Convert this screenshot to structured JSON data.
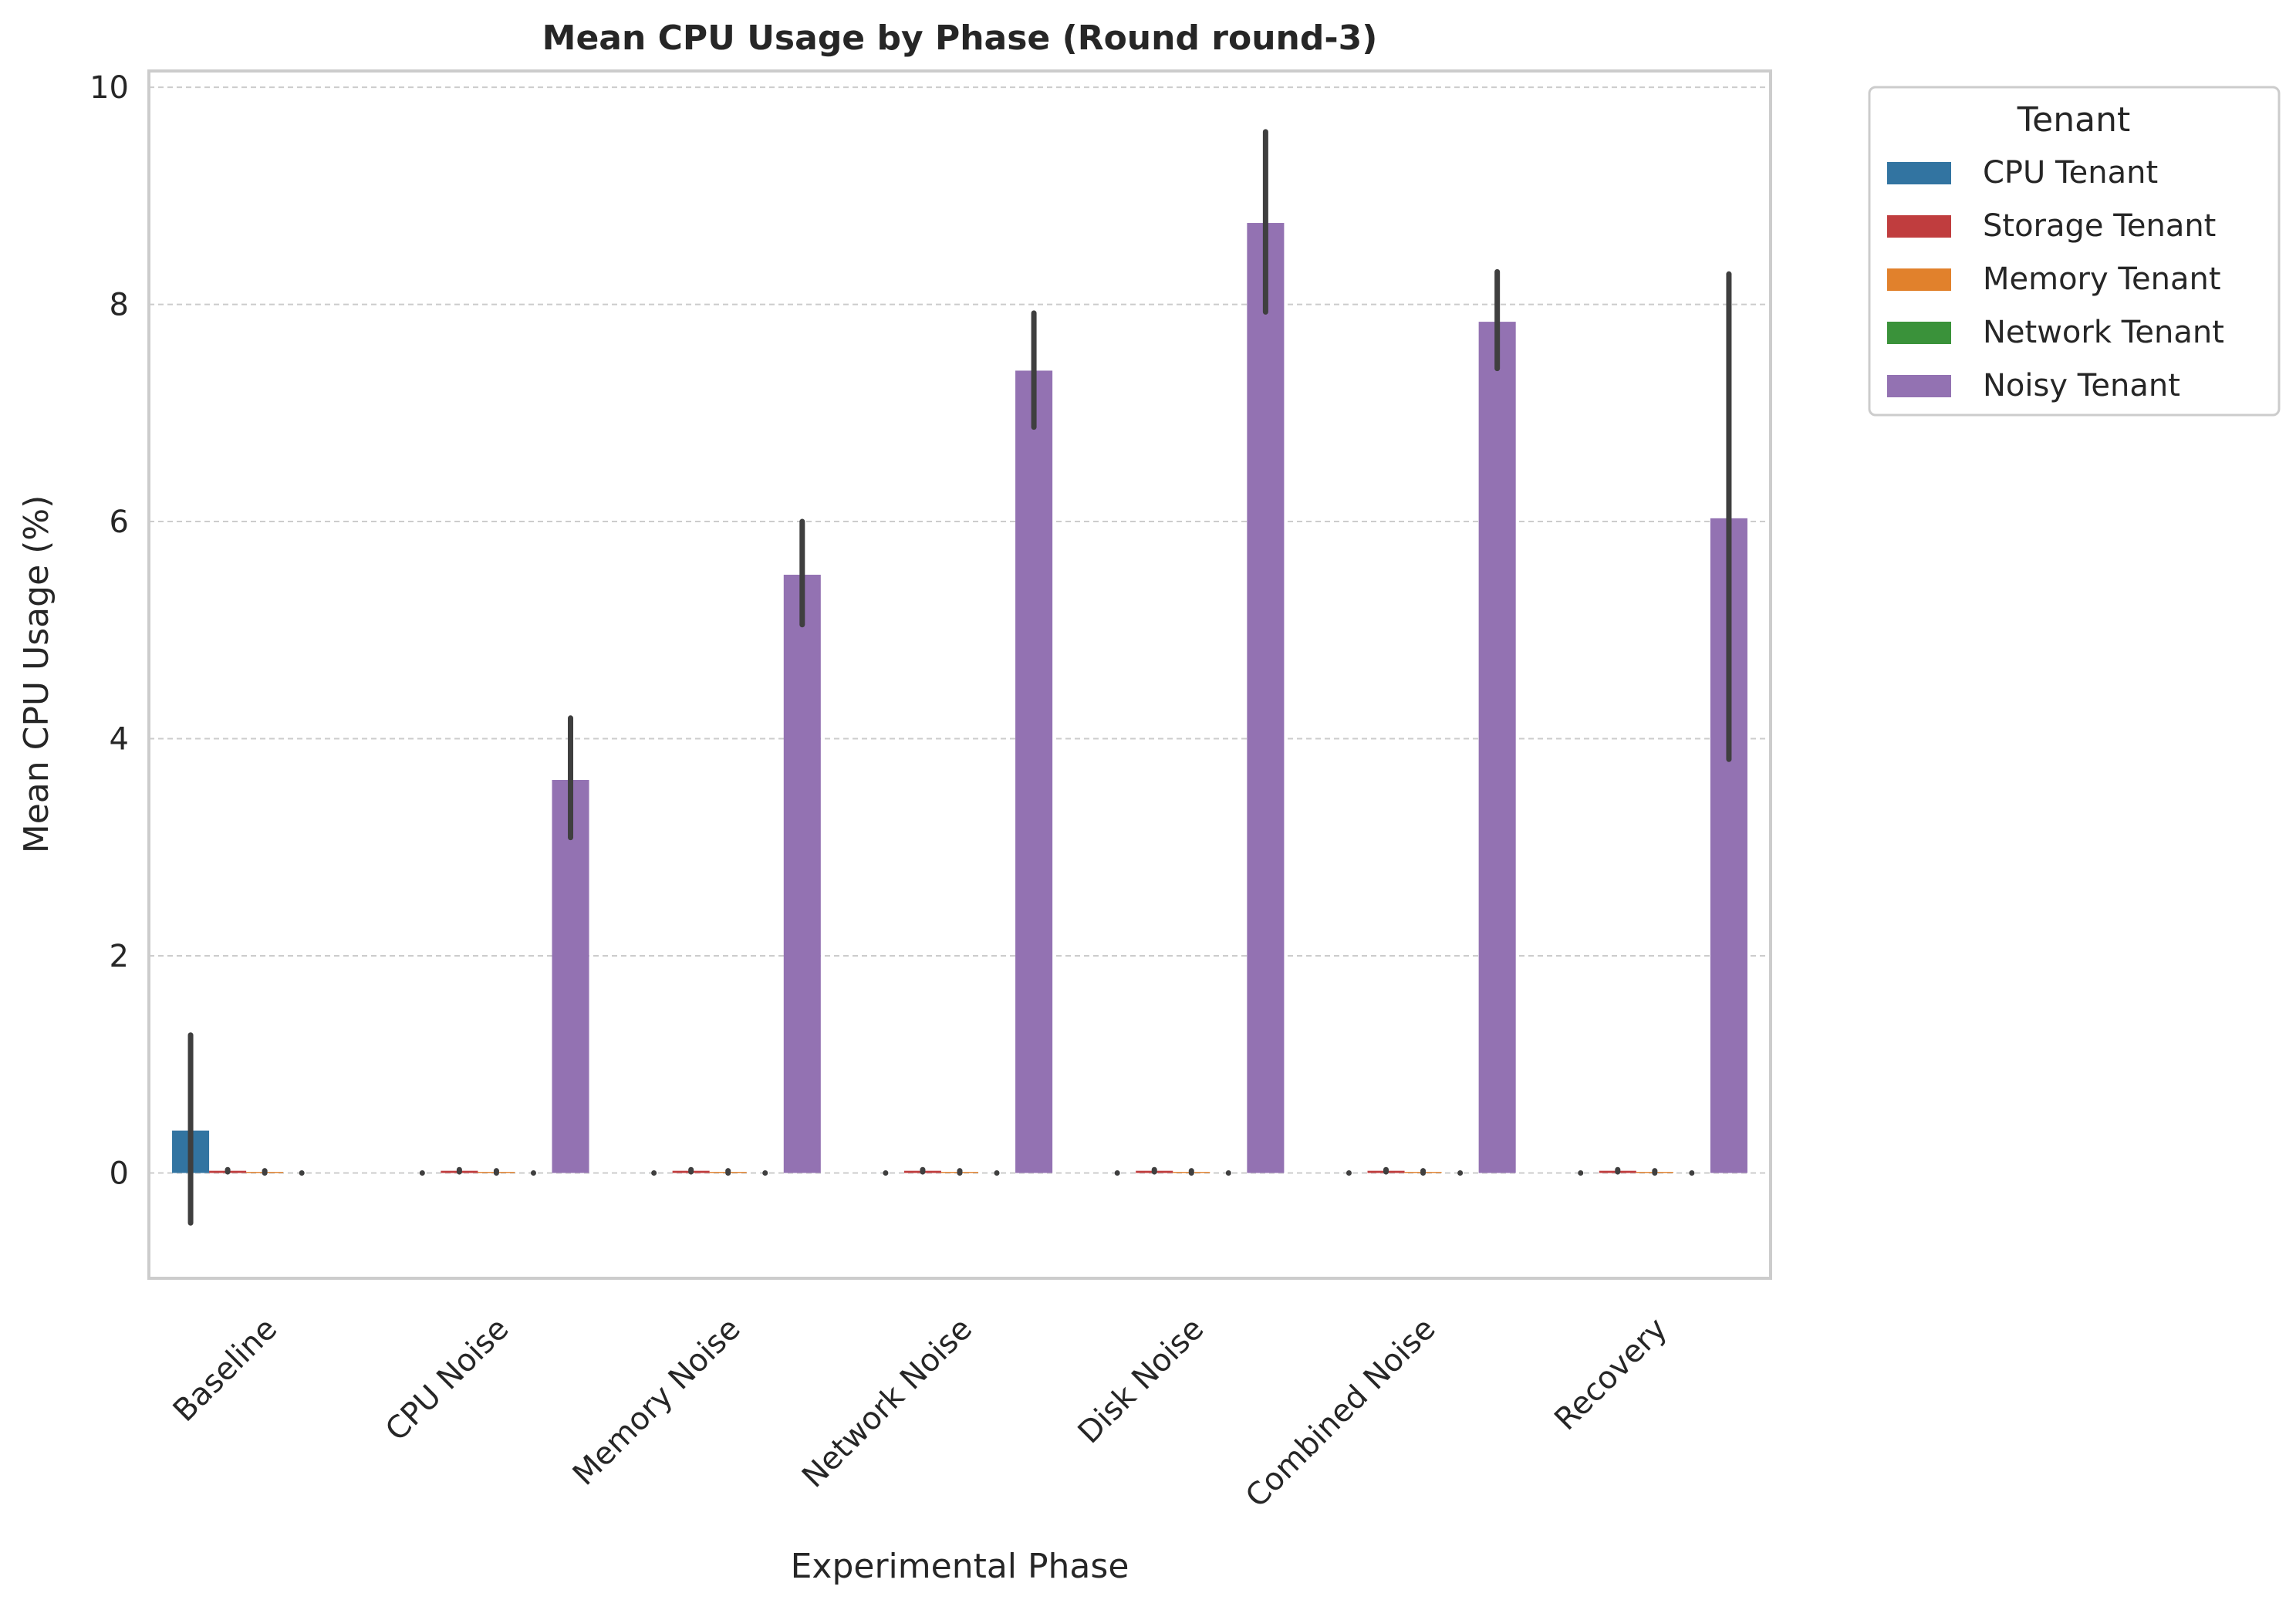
{
  "chart_data": {
    "type": "bar",
    "title": "Mean CPU Usage by Phase (Round round-3)",
    "xlabel": "Experimental Phase",
    "ylabel": "Mean CPU Usage (%)",
    "ylim": [
      -0.97,
      10.15
    ],
    "yticks": [
      0,
      2,
      4,
      6,
      8,
      10
    ],
    "grid": true,
    "legend_title": "Tenant",
    "legend_position": "outside-top-right",
    "categories": [
      "Baseline",
      "CPU Noise",
      "Memory Noise",
      "Network Noise",
      "Disk Noise",
      "Combined Noise",
      "Recovery"
    ],
    "series": [
      {
        "name": "CPU Tenant",
        "color": "#3274a1",
        "values": [
          0.39,
          0.0,
          0.0,
          0.0,
          0.0,
          0.0,
          0.0
        ],
        "ci_low": [
          -0.46,
          0.0,
          0.0,
          0.0,
          0.0,
          0.0,
          0.0
        ],
        "ci_high": [
          1.27,
          0.0,
          0.0,
          0.0,
          0.0,
          0.0,
          0.0
        ]
      },
      {
        "name": "Storage Tenant",
        "color": "#c03d3e",
        "values": [
          0.02,
          0.02,
          0.02,
          0.02,
          0.02,
          0.02,
          0.02
        ],
        "ci_low": [
          0.01,
          0.01,
          0.01,
          0.01,
          0.01,
          0.01,
          0.01
        ],
        "ci_high": [
          0.03,
          0.03,
          0.03,
          0.03,
          0.03,
          0.03,
          0.03
        ]
      },
      {
        "name": "Memory Tenant",
        "color": "#e1812c",
        "values": [
          0.01,
          0.01,
          0.01,
          0.01,
          0.01,
          0.01,
          0.01
        ],
        "ci_low": [
          0.0,
          0.0,
          0.0,
          0.0,
          0.0,
          0.0,
          0.0
        ],
        "ci_high": [
          0.02,
          0.02,
          0.02,
          0.02,
          0.02,
          0.02,
          0.02
        ]
      },
      {
        "name": "Network Tenant",
        "color": "#3a923a",
        "values": [
          0.0,
          0.0,
          0.0,
          0.0,
          0.0,
          0.0,
          0.0
        ],
        "ci_low": [
          0.0,
          0.0,
          0.0,
          0.0,
          0.0,
          0.0,
          0.0
        ],
        "ci_high": [
          0.0,
          0.0,
          0.0,
          0.0,
          0.0,
          0.0,
          0.0
        ]
      },
      {
        "name": "Noisy Tenant",
        "color": "#9372b2",
        "values": [
          null,
          3.62,
          5.51,
          7.39,
          8.75,
          7.84,
          6.03
        ],
        "ci_low": [
          null,
          3.09,
          5.05,
          6.87,
          7.93,
          7.41,
          3.81
        ],
        "ci_high": [
          null,
          4.19,
          6.0,
          7.92,
          9.59,
          8.3,
          8.28
        ]
      }
    ]
  }
}
